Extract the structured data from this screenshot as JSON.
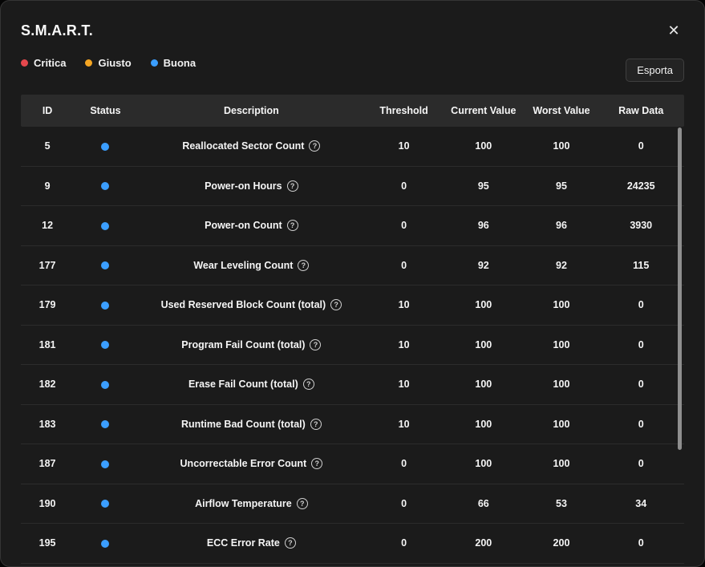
{
  "dialog": {
    "title": "S.M.A.R.T.",
    "close_icon": "✕",
    "export_button": "Esporta"
  },
  "legend": [
    {
      "label": "Critica",
      "color": "#e5484d"
    },
    {
      "label": "Giusto",
      "color": "#f5a623"
    },
    {
      "label": "Buona",
      "color": "#3b9eff"
    }
  ],
  "table": {
    "columns": [
      "ID",
      "Status",
      "Description",
      "Threshold",
      "Current Value",
      "Worst Value",
      "Raw Data"
    ],
    "info_icon": "?",
    "status_good_color": "#3b9eff",
    "rows": [
      {
        "id": "5",
        "status": "Buona",
        "description": "Reallocated Sector Count",
        "threshold": "10",
        "current": "100",
        "worst": "100",
        "raw": "0"
      },
      {
        "id": "9",
        "status": "Buona",
        "description": "Power-on Hours",
        "threshold": "0",
        "current": "95",
        "worst": "95",
        "raw": "24235"
      },
      {
        "id": "12",
        "status": "Buona",
        "description": "Power-on Count",
        "threshold": "0",
        "current": "96",
        "worst": "96",
        "raw": "3930"
      },
      {
        "id": "177",
        "status": "Buona",
        "description": "Wear Leveling Count",
        "threshold": "0",
        "current": "92",
        "worst": "92",
        "raw": "115"
      },
      {
        "id": "179",
        "status": "Buona",
        "description": "Used Reserved Block Count (total)",
        "threshold": "10",
        "current": "100",
        "worst": "100",
        "raw": "0"
      },
      {
        "id": "181",
        "status": "Buona",
        "description": "Program Fail Count (total)",
        "threshold": "10",
        "current": "100",
        "worst": "100",
        "raw": "0"
      },
      {
        "id": "182",
        "status": "Buona",
        "description": "Erase Fail Count (total)",
        "threshold": "10",
        "current": "100",
        "worst": "100",
        "raw": "0"
      },
      {
        "id": "183",
        "status": "Buona",
        "description": "Runtime Bad Count (total)",
        "threshold": "10",
        "current": "100",
        "worst": "100",
        "raw": "0"
      },
      {
        "id": "187",
        "status": "Buona",
        "description": "Uncorrectable Error Count",
        "threshold": "0",
        "current": "100",
        "worst": "100",
        "raw": "0"
      },
      {
        "id": "190",
        "status": "Buona",
        "description": "Airflow Temperature",
        "threshold": "0",
        "current": "66",
        "worst": "53",
        "raw": "34"
      },
      {
        "id": "195",
        "status": "Buona",
        "description": "ECC Error Rate",
        "threshold": "0",
        "current": "200",
        "worst": "200",
        "raw": "0"
      }
    ]
  }
}
